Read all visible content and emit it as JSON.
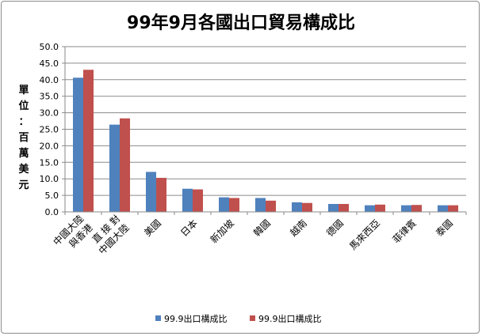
{
  "chart_data": {
    "type": "bar",
    "title": "99年9月各國出口貿易構成比",
    "ylabel": "單位：百萬美元",
    "ylabel_chars": [
      "單",
      "位",
      "：",
      "百",
      "萬",
      "美",
      "元"
    ],
    "ylim": [
      0,
      50
    ],
    "yticks": [
      "0.0",
      "5.0",
      "10.0",
      "15.0",
      "20.0",
      "25.0",
      "30.0",
      "35.0",
      "40.0",
      "45.0",
      "50.0"
    ],
    "grid": true,
    "legend_position": "bottom",
    "categories": [
      "中國大陸 與香港",
      "直 接 對 中國大陸",
      "美國",
      "日本",
      "新加坡",
      "韓國",
      "越南",
      "德國",
      "馬來西亞",
      "菲律賓",
      "泰國"
    ],
    "category_lines": [
      [
        "中國大陸",
        "與香港"
      ],
      [
        "直 接 對",
        "中國大陸"
      ],
      [
        "美國"
      ],
      [
        "日本"
      ],
      [
        "新加坡"
      ],
      [
        "韓國"
      ],
      [
        "越南"
      ],
      [
        "德國"
      ],
      [
        "馬來西亞"
      ],
      [
        "菲律賓"
      ],
      [
        "泰國"
      ]
    ],
    "series": [
      {
        "name": "99.9出口構成比",
        "color": "#4f81bd",
        "values": [
          40.6,
          26.4,
          12.1,
          7.0,
          4.4,
          4.2,
          2.9,
          2.4,
          2.0,
          2.0,
          2.0
        ]
      },
      {
        "name": "99.9出口構成比",
        "color": "#c0504d",
        "values": [
          43.0,
          28.3,
          10.3,
          6.8,
          4.2,
          3.4,
          2.7,
          2.4,
          2.2,
          2.1,
          2.0
        ]
      }
    ]
  }
}
